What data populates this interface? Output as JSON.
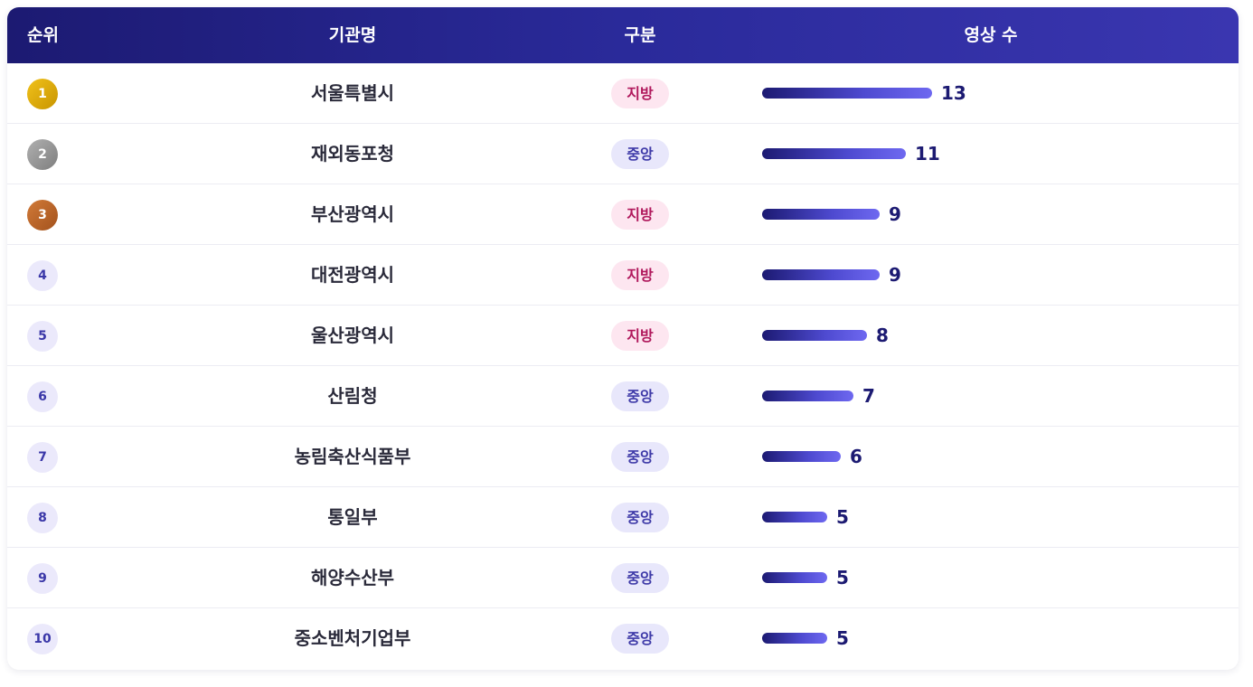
{
  "table": {
    "headers": {
      "rank": "순위",
      "org": "기관명",
      "type": "구분",
      "count": "영상 수"
    },
    "rows": [
      {
        "rank": "1",
        "org": "서울특별시",
        "type": "지방",
        "count": 13
      },
      {
        "rank": "2",
        "org": "재외동포청",
        "type": "중앙",
        "count": 11
      },
      {
        "rank": "3",
        "org": "부산광역시",
        "type": "지방",
        "count": 9
      },
      {
        "rank": "4",
        "org": "대전광역시",
        "type": "지방",
        "count": 9
      },
      {
        "rank": "5",
        "org": "울산광역시",
        "type": "지방",
        "count": 8
      },
      {
        "rank": "6",
        "org": "산림청",
        "type": "중앙",
        "count": 7
      },
      {
        "rank": "7",
        "org": "농림축산식품부",
        "type": "중앙",
        "count": 6
      },
      {
        "rank": "8",
        "org": "통일부",
        "type": "중앙",
        "count": 5
      },
      {
        "rank": "9",
        "org": "해양수산부",
        "type": "중앙",
        "count": 5
      },
      {
        "rank": "10",
        "org": "중소벤처기업부",
        "type": "중앙",
        "count": 5
      }
    ]
  },
  "colors": {
    "header_start": "#1c1a72",
    "header_end": "#3a36b0",
    "local_pill_bg": "#fde6f0",
    "local_pill_text": "#b0185c",
    "central_pill_bg": "#e8e7fb",
    "central_pill_text": "#3e3aa8",
    "gold": "#e0ae0c",
    "silver": "#9a9a9a",
    "bronze": "#b8652a"
  }
}
